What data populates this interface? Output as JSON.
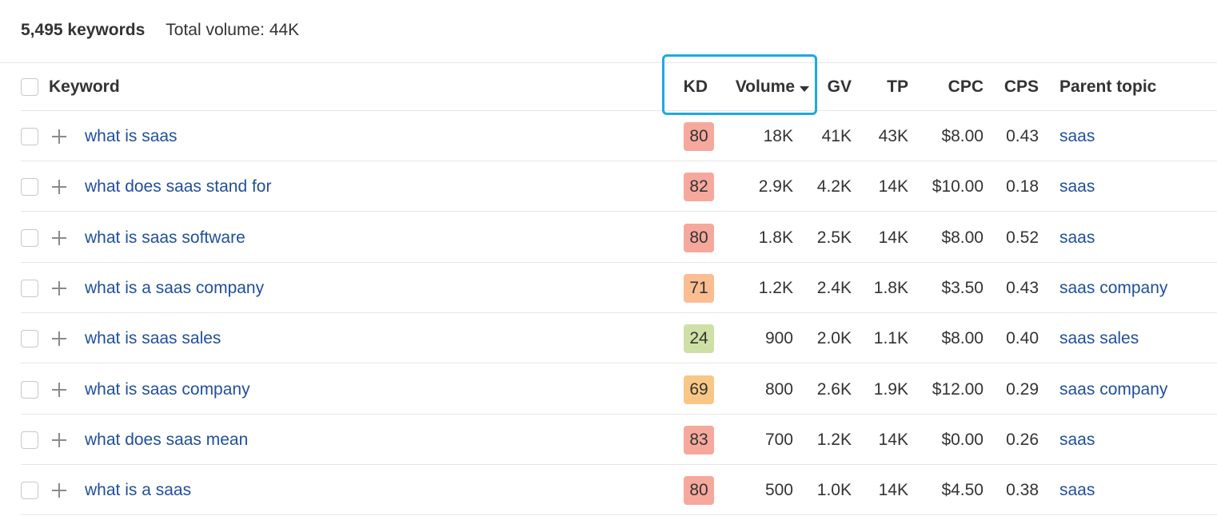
{
  "summary": {
    "keyword_count": "5,495 keywords",
    "total_volume": "Total volume: 44K"
  },
  "columns": {
    "keyword": "Keyword",
    "kd": "KD",
    "volume": "Volume",
    "gv": "GV",
    "tp": "TP",
    "cpc": "CPC",
    "cps": "CPS",
    "parent_topic": "Parent topic"
  },
  "sort": {
    "column": "Volume",
    "direction": "descending",
    "icon": "caret-down-icon"
  },
  "kd_colors": {
    "hard": "#f6a89d",
    "medium_hard": "#fbbd92",
    "medium": "#f9c785",
    "easy": "#cfe0a6"
  },
  "accent_highlight": "#1ea9e1",
  "link_color": "#1f4f9b",
  "rows": [
    {
      "keyword": "what is saas",
      "kd": "80",
      "kd_level": "hard",
      "volume": "18K",
      "gv": "41K",
      "tp": "43K",
      "cpc": "$8.00",
      "cps": "0.43",
      "parent_topic": "saas"
    },
    {
      "keyword": "what does saas stand for",
      "kd": "82",
      "kd_level": "hard",
      "volume": "2.9K",
      "gv": "4.2K",
      "tp": "14K",
      "cpc": "$10.00",
      "cps": "0.18",
      "parent_topic": "saas"
    },
    {
      "keyword": "what is saas software",
      "kd": "80",
      "kd_level": "hard",
      "volume": "1.8K",
      "gv": "2.5K",
      "tp": "14K",
      "cpc": "$8.00",
      "cps": "0.52",
      "parent_topic": "saas"
    },
    {
      "keyword": "what is a saas company",
      "kd": "71",
      "kd_level": "medium_hard",
      "volume": "1.2K",
      "gv": "2.4K",
      "tp": "1.8K",
      "cpc": "$3.50",
      "cps": "0.43",
      "parent_topic": "saas company"
    },
    {
      "keyword": "what is saas sales",
      "kd": "24",
      "kd_level": "easy",
      "volume": "900",
      "gv": "2.0K",
      "tp": "1.1K",
      "cpc": "$8.00",
      "cps": "0.40",
      "parent_topic": "saas sales"
    },
    {
      "keyword": "what is saas company",
      "kd": "69",
      "kd_level": "medium",
      "volume": "800",
      "gv": "2.6K",
      "tp": "1.9K",
      "cpc": "$12.00",
      "cps": "0.29",
      "parent_topic": "saas company"
    },
    {
      "keyword": "what does saas mean",
      "kd": "83",
      "kd_level": "hard",
      "volume": "700",
      "gv": "1.2K",
      "tp": "14K",
      "cpc": "$0.00",
      "cps": "0.26",
      "parent_topic": "saas"
    },
    {
      "keyword": "what is a saas",
      "kd": "80",
      "kd_level": "hard",
      "volume": "500",
      "gv": "1.0K",
      "tp": "14K",
      "cpc": "$4.50",
      "cps": "0.38",
      "parent_topic": "saas"
    }
  ]
}
